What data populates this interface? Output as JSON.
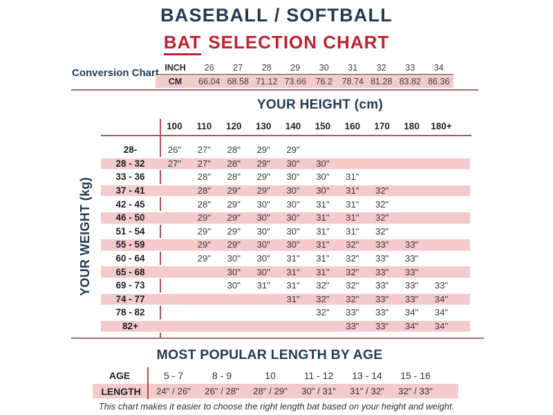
{
  "header": {
    "title_line1": "BASEBALL / SOFTBALL",
    "title_accent": "BAT",
    "title_rest": "SELECTION CHART"
  },
  "chart_data": [
    {
      "type": "table",
      "name": "inch-cm-conversion",
      "title": "Conversion Chart",
      "row_labels": [
        "INCH",
        "CM"
      ],
      "inch": [
        "26",
        "27",
        "28",
        "29",
        "30",
        "31",
        "32",
        "33",
        "34"
      ],
      "cm": [
        "66.04",
        "68.58",
        "71.12",
        "73.66",
        "76.2",
        "78.74",
        "81.28",
        "83.82",
        "86.36"
      ]
    },
    {
      "type": "table",
      "name": "bat-length-by-height-weight",
      "title": "YOUR HEIGHT (cm)",
      "ylabel": "YOUR WEIGHT (kg)",
      "columns": [
        "100",
        "110",
        "120",
        "130",
        "140",
        "150",
        "160",
        "170",
        "180",
        "180+"
      ],
      "rows": [
        {
          "weight": "28-",
          "values": [
            "26\"",
            "27\"",
            "28\"",
            "29\"",
            "29\"",
            "",
            "",
            "",
            "",
            ""
          ]
        },
        {
          "weight": "28 - 32",
          "values": [
            "27\"",
            "27\"",
            "28\"",
            "29\"",
            "30\"",
            "30\"",
            "",
            "",
            "",
            ""
          ]
        },
        {
          "weight": "33 - 36",
          "values": [
            "",
            "28\"",
            "28\"",
            "29\"",
            "30\"",
            "30\"",
            "31\"",
            "",
            "",
            ""
          ]
        },
        {
          "weight": "37 - 41",
          "values": [
            "",
            "28\"",
            "29\"",
            "29\"",
            "30\"",
            "30\"",
            "31\"",
            "32\"",
            "",
            ""
          ]
        },
        {
          "weight": "42 - 45",
          "values": [
            "",
            "28\"",
            "29\"",
            "30\"",
            "30\"",
            "31\"",
            "31\"",
            "32\"",
            "",
            ""
          ]
        },
        {
          "weight": "46 - 50",
          "values": [
            "",
            "29\"",
            "29\"",
            "30\"",
            "30\"",
            "31\"",
            "31\"",
            "32\"",
            "",
            ""
          ]
        },
        {
          "weight": "51 - 54",
          "values": [
            "",
            "29\"",
            "29\"",
            "30\"",
            "30\"",
            "31\"",
            "31\"",
            "32\"",
            "",
            ""
          ]
        },
        {
          "weight": "55 - 59",
          "values": [
            "",
            "29\"",
            "29\"",
            "30\"",
            "30\"",
            "31\"",
            "32\"",
            "33\"",
            "33\"",
            ""
          ]
        },
        {
          "weight": "60 - 64",
          "values": [
            "",
            "29\"",
            "30\"",
            "30\"",
            "31\"",
            "31\"",
            "32\"",
            "33\"",
            "33\"",
            ""
          ]
        },
        {
          "weight": "65 - 68",
          "values": [
            "",
            "",
            "30\"",
            "30\"",
            "31\"",
            "31\"",
            "32\"",
            "33\"",
            "33\"",
            ""
          ]
        },
        {
          "weight": "69 - 73",
          "values": [
            "",
            "",
            "30\"",
            "31\"",
            "31\"",
            "32\"",
            "32\"",
            "33\"",
            "33\"",
            "33\""
          ]
        },
        {
          "weight": "74 - 77",
          "values": [
            "",
            "",
            "",
            "",
            "31\"",
            "32\"",
            "32\"",
            "33\"",
            "33\"",
            "34\""
          ]
        },
        {
          "weight": "78 - 82",
          "values": [
            "",
            "",
            "",
            "",
            "",
            "32\"",
            "33\"",
            "33\"",
            "34\"",
            "34\""
          ]
        },
        {
          "weight": "82+",
          "values": [
            "",
            "",
            "",
            "",
            "",
            "",
            "33\"",
            "33\"",
            "34\"",
            "34\""
          ]
        }
      ]
    },
    {
      "type": "table",
      "name": "most-popular-length-by-age",
      "title": "MOST POPULAR LENGTH BY AGE",
      "row_labels": [
        "AGE",
        "LENGTH"
      ],
      "ages": [
        "5 - 7",
        "8 - 9",
        "10",
        "11 - 12",
        "13 - 14",
        "15 - 16"
      ],
      "lengths": [
        "24\" / 26\"",
        "26\" / 28\"",
        "28\" / 29\"",
        "30\" / 31\"",
        "31\" / 32\"",
        "32\" / 33\""
      ]
    }
  ],
  "footer": {
    "note": "This chart makes it easier to choose the right length bat based on your height and weight."
  },
  "colors": {
    "navy": "#1f3a54",
    "red": "#c2202f",
    "pink_band": "#f4caca",
    "rule_line": "#a96a6a",
    "vertical_line": "#ad4b4b"
  }
}
